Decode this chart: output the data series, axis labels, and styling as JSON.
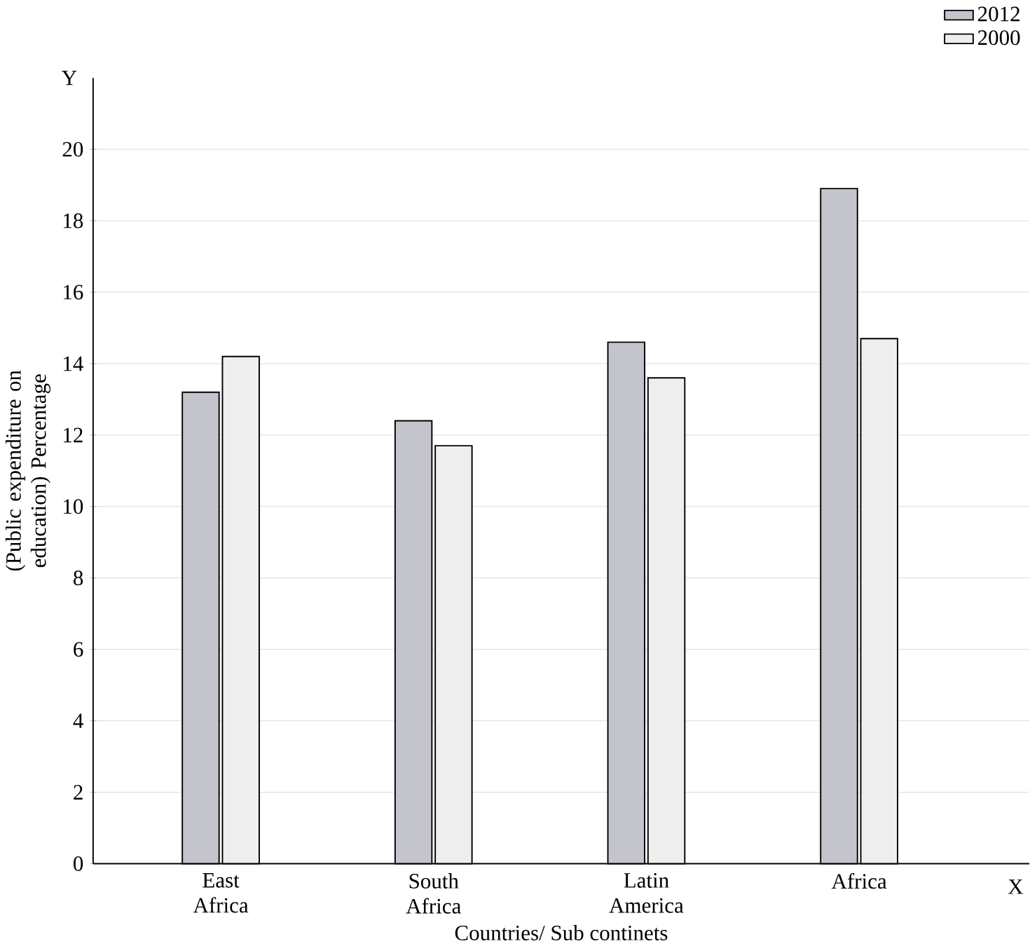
{
  "chart_data": {
    "type": "bar",
    "xlabel": "Countries/ Sub continets",
    "ylabel": "(Public expenditure on education) Percentage",
    "categories": [
      "East Africa",
      "South Africa",
      "Latin America",
      "Africa"
    ],
    "series": [
      {
        "name": "2012",
        "color": "#c4c4cc",
        "values": [
          13.2,
          12.4,
          14.6,
          18.9
        ]
      },
      {
        "name": "2000",
        "color": "#eeeeee",
        "values": [
          14.2,
          11.7,
          13.6,
          14.7
        ]
      }
    ],
    "ylim": [
      0,
      22
    ],
    "yticks": [
      0,
      2,
      4,
      6,
      8,
      10,
      12,
      14,
      16,
      18,
      20
    ],
    "annotations": [
      "Y",
      "X"
    ],
    "grid": "y",
    "legend": "top right"
  }
}
